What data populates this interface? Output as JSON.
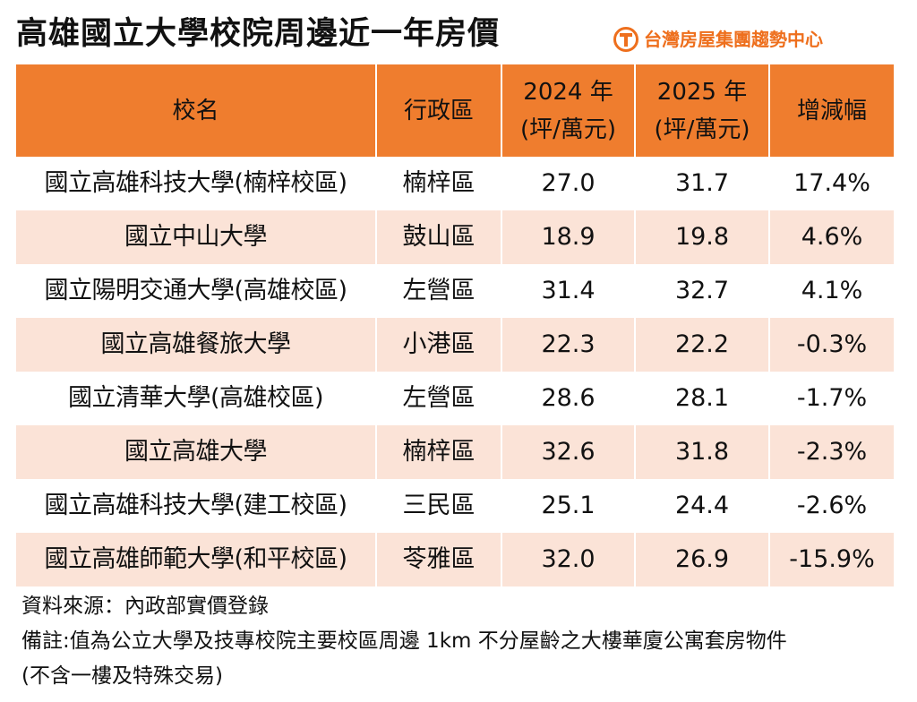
{
  "header": {
    "title": "高雄國立大學校院周邊近一年房價",
    "brand": "台灣房屋集團趨勢中心"
  },
  "chart_data": {
    "type": "table",
    "title": "高雄國立大學校院周邊近一年房價",
    "columns": [
      "校名",
      "行政區",
      "2024 年\n(坪/萬元)",
      "2025 年\n(坪/萬元)",
      "增減幅"
    ],
    "rows": [
      [
        "國立高雄科技大學(楠梓校區)",
        "楠梓區",
        "27.0",
        "31.7",
        "17.4%"
      ],
      [
        "國立中山大學",
        "鼓山區",
        "18.9",
        "19.8",
        "4.6%"
      ],
      [
        "國立陽明交通大學(高雄校區)",
        "左營區",
        "31.4",
        "32.7",
        "4.1%"
      ],
      [
        "國立高雄餐旅大學",
        "小港區",
        "22.3",
        "22.2",
        "-0.3%"
      ],
      [
        "國立清華大學(高雄校區)",
        "左營區",
        "28.6",
        "28.1",
        "-1.7%"
      ],
      [
        "國立高雄大學",
        "楠梓區",
        "32.6",
        "31.8",
        "-2.3%"
      ],
      [
        "國立高雄科技大學(建工校區)",
        "三民區",
        "25.1",
        "24.4",
        "-2.6%"
      ],
      [
        "國立高雄師範大學(和平校區)",
        "苓雅區",
        "32.0",
        "26.9",
        "-15.9%"
      ]
    ],
    "colors": {
      "header_background": "#ef7d2e",
      "stripe_background": "#fbe3d7",
      "brand": "#ee6f1d"
    }
  },
  "notes": {
    "source": "資料來源：內政部實價登錄",
    "remark_line_1": "備註:值為公立大學及技專校院主要校區周邊 1km 不分屋齡之大樓華廈公寓套房物件",
    "remark_line_2": "(不含一樓及特殊交易)"
  },
  "icons": {
    "brand_logo": "taiwan-realty-logo-icon"
  }
}
